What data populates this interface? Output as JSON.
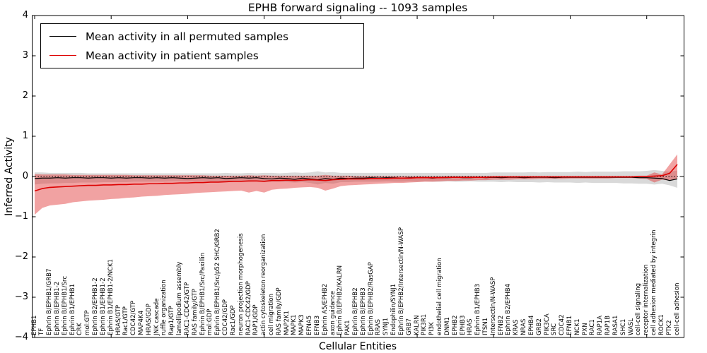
{
  "title": "EPHB forward signaling -- 1093 samples",
  "legend": [
    {
      "label": "Mean activity in all permuted samples",
      "color": "#000000"
    },
    {
      "label": "Mean activity in patient samples",
      "color": "#dd0000"
    }
  ],
  "colors": {
    "permuted_line": "#000000",
    "patient_line": "#dd0000",
    "permuted_band": "#d9d9d9",
    "patient_band": "#e03030",
    "axis": "#000000"
  },
  "chart_data": {
    "type": "line",
    "title": "EPHB forward signaling -- 1093 samples",
    "xlabel": "Cellular Entities",
    "ylabel": "Inferred Activity",
    "ylim": [
      -4,
      4
    ],
    "yticks": [
      -4,
      -3,
      -2,
      -1,
      0,
      1,
      2,
      3,
      4
    ],
    "ytick_labels": [
      "−4",
      "−3",
      "−2",
      "−1",
      "0",
      "1",
      "2",
      "3",
      "4"
    ],
    "grid": false,
    "zero_line_style": "dotted",
    "legend_position": "upper left",
    "categories": [
      "EPHB1",
      "TF",
      "Ephrin B/EPHB1/GRB7",
      "Ephrin B/EPHB1-2",
      "Ephrin B/EPHB1/Src",
      "Ephrin B1/EPHB1",
      "CRK",
      "mol:GTP",
      "Ephrin B2/EPHB1-2",
      "Ephrin B1/EPHB1-2",
      "Ephrin B1/EPHB1-2/NCK1",
      "HRAS/GTP",
      "Rac1/GTP",
      "CDC42/GTP",
      "MAP4K4",
      "HRAS/GDP",
      "JNK cascade",
      "ruffle organization",
      "Rap1/GTP",
      "lamellipodium assembly",
      "RAC1-CDC42/GTP",
      "RAS family/GTP",
      "Ephrin B/EPHB1/Src/Paxillin",
      "mol:GDP",
      "Ephrin B/EPHB1/Src/p52 SHC/GRB2",
      "CDC42/GDP",
      "Rac1/GDP",
      "neuron projection morphogenesis",
      "RAC1-CDC42/GDP",
      "RAP1/GDP",
      "actin cytoskeleton reorganization",
      "cell migration",
      "RAS family/GDP",
      "MAP2K1",
      "MAPK1",
      "MAPK3",
      "EFNA5",
      "EFNB3",
      "Ephrin A5/EPHB2",
      "axon guidance",
      "Ephrin B/EPHB2/KALRN",
      "PAK1",
      "Ephrin B/EPHB2",
      "Ephrin B/EPHB3",
      "Ephrin B/EPHB2/RasGAP",
      "RRAS",
      "SYNJ1",
      "Endophilin/SYNJ1",
      "Ephrin B/EPHB2/Intersectin/N-WASP",
      "GRB7",
      "KALRN",
      "PIK3R1",
      "PI3K",
      "endothelial cell migration",
      "DNM1",
      "EPHB2",
      "EPHB3",
      "HRAS",
      "Ephrin B1/EPHB3",
      "ITSN1",
      "Intersectin/N-WASP",
      "EFNB2",
      "Ephrin B2/EPHB4",
      "KRAS",
      "NRAS",
      "EPHB4",
      "GRB2",
      "PIK3CA",
      "SRC",
      "CDC42",
      "EFNB1",
      "NCK1",
      "PXN",
      "RAC1",
      "RAP1A",
      "RAP1B",
      "RASA1",
      "SHC1",
      "WASL",
      "cell-cell signaling",
      "receptor internalization",
      "cell adhesion mediated by integrin",
      "ROCK1",
      "PTK2",
      "cell-cell adhesion"
    ],
    "series": [
      {
        "name": "Mean activity in all permuted samples",
        "color": "#000000",
        "values": [
          -0.05,
          -0.04,
          -0.04,
          -0.03,
          -0.04,
          -0.03,
          -0.03,
          -0.04,
          -0.03,
          -0.03,
          -0.04,
          -0.03,
          -0.04,
          -0.03,
          -0.03,
          -0.04,
          -0.03,
          -0.04,
          -0.03,
          -0.04,
          -0.05,
          -0.04,
          -0.03,
          -0.04,
          -0.03,
          -0.05,
          -0.04,
          -0.03,
          -0.04,
          -0.03,
          -0.05,
          -0.06,
          -0.04,
          -0.05,
          -0.07,
          -0.04,
          -0.06,
          -0.08,
          -0.05,
          -0.07,
          -0.04,
          -0.05,
          -0.04,
          -0.04,
          -0.03,
          -0.04,
          -0.03,
          -0.03,
          -0.04,
          -0.03,
          -0.03,
          -0.03,
          -0.04,
          -0.03,
          -0.03,
          -0.02,
          -0.03,
          -0.03,
          -0.02,
          -0.03,
          -0.02,
          -0.03,
          -0.02,
          -0.02,
          -0.03,
          -0.02,
          -0.02,
          -0.02,
          -0.03,
          -0.02,
          -0.02,
          -0.02,
          -0.02,
          -0.02,
          -0.02,
          -0.02,
          -0.02,
          -0.02,
          -0.02,
          -0.03,
          -0.03,
          -0.04,
          -0.05,
          -0.1,
          -0.06
        ]
      },
      {
        "name": "Mean activity in patient samples",
        "color": "#dd0000",
        "values": [
          -0.36,
          -0.3,
          -0.27,
          -0.26,
          -0.25,
          -0.24,
          -0.23,
          -0.22,
          -0.22,
          -0.21,
          -0.21,
          -0.2,
          -0.2,
          -0.19,
          -0.19,
          -0.18,
          -0.18,
          -0.17,
          -0.17,
          -0.16,
          -0.16,
          -0.15,
          -0.15,
          -0.14,
          -0.14,
          -0.13,
          -0.12,
          -0.12,
          -0.11,
          -0.11,
          -0.12,
          -0.1,
          -0.1,
          -0.09,
          -0.1,
          -0.09,
          -0.08,
          -0.09,
          -0.1,
          -0.08,
          -0.07,
          -0.06,
          -0.06,
          -0.06,
          -0.05,
          -0.05,
          -0.05,
          -0.04,
          -0.04,
          -0.04,
          -0.03,
          -0.03,
          -0.03,
          -0.03,
          -0.02,
          -0.02,
          -0.02,
          -0.02,
          -0.02,
          -0.02,
          -0.01,
          -0.01,
          -0.01,
          -0.01,
          -0.01,
          -0.01,
          -0.01,
          -0.01,
          -0.01,
          -0.01,
          -0.01,
          -0.01,
          -0.01,
          -0.01,
          -0.01,
          -0.01,
          -0.01,
          -0.01,
          -0.01,
          0.0,
          0.0,
          0.01,
          0.02,
          0.08,
          0.3
        ]
      }
    ],
    "bands": [
      {
        "name": "permuted samples range",
        "color": "#d9d9d9",
        "opacity": 1,
        "lo": [
          -0.2,
          -0.18,
          -0.17,
          -0.17,
          -0.16,
          -0.16,
          -0.15,
          -0.15,
          -0.15,
          -0.14,
          -0.14,
          -0.14,
          -0.14,
          -0.13,
          -0.13,
          -0.13,
          -0.13,
          -0.13,
          -0.12,
          -0.12,
          -0.13,
          -0.12,
          -0.12,
          -0.12,
          -0.12,
          -0.13,
          -0.12,
          -0.12,
          -0.13,
          -0.12,
          -0.14,
          -0.13,
          -0.13,
          -0.14,
          -0.15,
          -0.14,
          -0.16,
          -0.2,
          -0.16,
          -0.18,
          -0.14,
          -0.14,
          -0.13,
          -0.13,
          -0.13,
          -0.13,
          -0.12,
          -0.13,
          -0.13,
          -0.12,
          -0.13,
          -0.12,
          -0.13,
          -0.13,
          -0.12,
          -0.13,
          -0.13,
          -0.12,
          -0.13,
          -0.13,
          -0.13,
          -0.14,
          -0.13,
          -0.14,
          -0.14,
          -0.14,
          -0.15,
          -0.14,
          -0.15,
          -0.15,
          -0.15,
          -0.16,
          -0.15,
          -0.16,
          -0.16,
          -0.16,
          -0.16,
          -0.17,
          -0.17,
          -0.18,
          -0.18,
          -0.2,
          -0.18,
          -0.22,
          -0.28
        ],
        "hi": [
          0.1,
          0.1,
          0.09,
          0.09,
          0.09,
          0.09,
          0.09,
          0.08,
          0.08,
          0.08,
          0.08,
          0.08,
          0.08,
          0.08,
          0.08,
          0.08,
          0.08,
          0.08,
          0.08,
          0.08,
          0.08,
          0.08,
          0.08,
          0.08,
          0.08,
          0.09,
          0.08,
          0.08,
          0.09,
          0.08,
          0.09,
          0.09,
          0.08,
          0.09,
          0.1,
          0.09,
          0.1,
          0.13,
          0.1,
          0.11,
          0.09,
          0.09,
          0.09,
          0.09,
          0.09,
          0.09,
          0.09,
          0.09,
          0.09,
          0.09,
          0.09,
          0.09,
          0.09,
          0.09,
          0.09,
          0.09,
          0.09,
          0.09,
          0.09,
          0.09,
          0.1,
          0.1,
          0.1,
          0.1,
          0.1,
          0.11,
          0.1,
          0.11,
          0.11,
          0.11,
          0.11,
          0.12,
          0.11,
          0.12,
          0.12,
          0.12,
          0.12,
          0.13,
          0.13,
          0.13,
          0.14,
          0.16,
          0.14,
          0.12,
          0.15
        ]
      },
      {
        "name": "patient samples range",
        "color": "#e03030",
        "opacity": 0.45,
        "lo": [
          -0.95,
          -0.78,
          -0.72,
          -0.7,
          -0.68,
          -0.64,
          -0.62,
          -0.6,
          -0.59,
          -0.58,
          -0.56,
          -0.55,
          -0.53,
          -0.52,
          -0.5,
          -0.49,
          -0.48,
          -0.46,
          -0.45,
          -0.44,
          -0.43,
          -0.41,
          -0.4,
          -0.39,
          -0.38,
          -0.37,
          -0.36,
          -0.35,
          -0.4,
          -0.36,
          -0.4,
          -0.33,
          -0.31,
          -0.3,
          -0.28,
          -0.27,
          -0.26,
          -0.28,
          -0.35,
          -0.3,
          -0.24,
          -0.22,
          -0.21,
          -0.2,
          -0.19,
          -0.18,
          -0.17,
          -0.16,
          -0.16,
          -0.15,
          -0.14,
          -0.13,
          -0.13,
          -0.12,
          -0.11,
          -0.11,
          -0.1,
          -0.1,
          -0.09,
          -0.09,
          -0.08,
          -0.08,
          -0.08,
          -0.07,
          -0.07,
          -0.07,
          -0.06,
          -0.06,
          -0.06,
          -0.06,
          -0.05,
          -0.05,
          -0.05,
          -0.05,
          -0.05,
          -0.05,
          -0.04,
          -0.04,
          -0.04,
          -0.05,
          -0.06,
          -0.15,
          -0.08,
          -0.1,
          -0.05
        ],
        "hi": [
          0.06,
          0.05,
          0.05,
          0.05,
          0.05,
          0.04,
          0.04,
          0.04,
          0.04,
          0.04,
          0.04,
          0.04,
          0.04,
          0.03,
          0.03,
          0.03,
          0.03,
          0.03,
          0.03,
          0.03,
          0.03,
          0.03,
          0.03,
          0.02,
          0.02,
          0.02,
          0.02,
          0.02,
          0.03,
          0.02,
          0.03,
          0.02,
          0.02,
          0.02,
          0.02,
          0.02,
          0.02,
          0.02,
          0.04,
          0.02,
          0.02,
          0.02,
          0.01,
          0.01,
          0.01,
          0.01,
          0.01,
          0.01,
          0.01,
          0.01,
          0.01,
          0.01,
          0.01,
          0.01,
          0.01,
          0.01,
          0.01,
          0.01,
          0.01,
          0.01,
          0.01,
          0.01,
          0.01,
          0.01,
          0.01,
          0.01,
          0.01,
          0.01,
          0.01,
          0.01,
          0.01,
          0.01,
          0.01,
          0.01,
          0.01,
          0.01,
          0.01,
          0.01,
          0.01,
          0.02,
          0.02,
          0.1,
          0.05,
          0.3,
          0.55
        ]
      }
    ]
  }
}
